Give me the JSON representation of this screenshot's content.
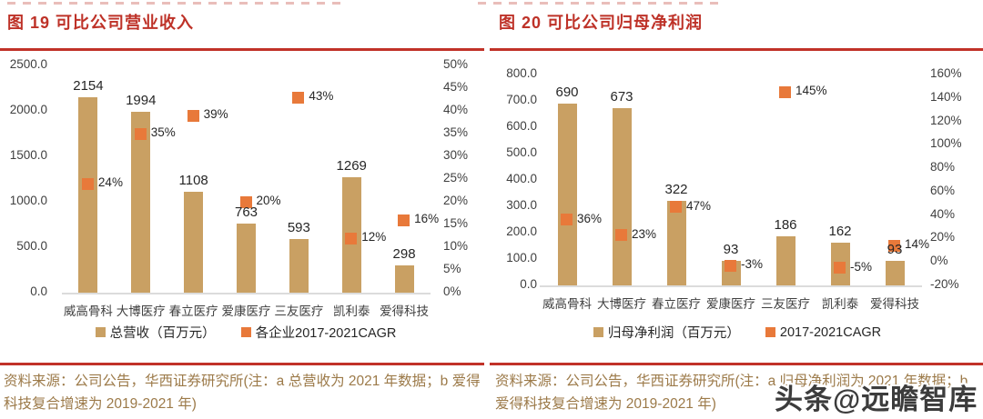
{
  "page": {
    "watermark": "头条@远瞻智库"
  },
  "colors": {
    "bar": "#C9A063",
    "marker": "#E8793A",
    "title_red": "#BE3228",
    "rule_red": "#C13228",
    "source_brown": "#9C7A49",
    "axis_line_gray": "#DCDCDC"
  },
  "chart_data": [
    {
      "type": "bar",
      "title": "图 19 可比公司营业收入",
      "categories": [
        "威高骨科",
        "大博医疗",
        "春立医疗",
        "爱康医疗",
        "三友医疗",
        "凯利泰",
        "爱得科技"
      ],
      "series": [
        {
          "name": "总营收（百万元）",
          "type": "bar",
          "axis": "left",
          "values": [
            2154,
            1994,
            1108,
            763,
            593,
            1269,
            298
          ],
          "labels": [
            "2154",
            "1994",
            "1108",
            "763",
            "593",
            "1269",
            "298"
          ]
        },
        {
          "name": "各企业2017-2021CAGR",
          "type": "scatter",
          "axis": "right",
          "values": [
            24,
            35,
            39,
            20,
            43,
            12,
            16
          ],
          "labels": [
            "24%",
            "35%",
            "39%",
            "20%",
            "43%",
            "12%",
            "16%"
          ]
        }
      ],
      "left_axis": {
        "min": 0,
        "max": 2500,
        "ticks": [
          "0.0",
          "500.0",
          "1000.0",
          "1500.0",
          "2000.0",
          "2500.0"
        ]
      },
      "right_axis": {
        "min": 0,
        "max": 50,
        "ticks": [
          "0%",
          "5%",
          "10%",
          "15%",
          "20%",
          "25%",
          "30%",
          "35%",
          "40%",
          "45%",
          "50%"
        ]
      },
      "grid": "off",
      "legend_position": "bottom",
      "source": "资料来源：公司公告，华西证券研究所(注：a 总营收为 2021 年数据；b 爱得科技复合增速为 2019-2021 年)"
    },
    {
      "type": "bar",
      "title": "图 20 可比公司归母净利润",
      "categories": [
        "威高骨科",
        "大博医疗",
        "春立医疗",
        "爱康医疗",
        "三友医疗",
        "凯利泰",
        "爱得科技"
      ],
      "series": [
        {
          "name": "归母净利润（百万元）",
          "type": "bar",
          "axis": "left",
          "values": [
            690,
            673,
            322,
            93,
            186,
            162,
            93
          ],
          "labels": [
            "690",
            "673",
            "322",
            "93",
            "186",
            "162",
            "93"
          ]
        },
        {
          "name": "2017-2021CAGR",
          "type": "scatter",
          "axis": "right",
          "values": [
            36,
            23,
            47,
            -3,
            145,
            -5,
            14
          ],
          "labels": [
            "36%",
            "23%",
            "47%",
            "-3%",
            "145%",
            "-5%",
            "14%"
          ]
        }
      ],
      "left_axis": {
        "min": 0,
        "max": 800,
        "ticks": [
          "0.0",
          "100.0",
          "200.0",
          "300.0",
          "400.0",
          "500.0",
          "600.0",
          "700.0",
          "800.0"
        ]
      },
      "right_axis": {
        "min": -20,
        "max": 160,
        "ticks": [
          "-20%",
          "0%",
          "20%",
          "40%",
          "60%",
          "80%",
          "100%",
          "120%",
          "140%",
          "160%"
        ]
      },
      "grid": "off",
      "legend_position": "bottom",
      "source": "资料来源：公司公告，华西证券研究所(注：a 归母净利润为 2021 年数据；b 爱得科技复合增速为 2019-2021 年)"
    }
  ]
}
